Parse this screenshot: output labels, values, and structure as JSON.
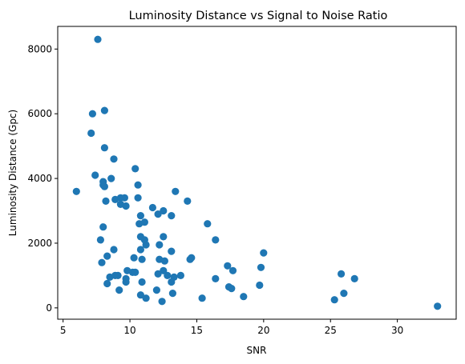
{
  "chart_data": {
    "type": "scatter",
    "title": "Luminosity Distance vs Signal to Noise Ratio",
    "xlabel": "SNR",
    "ylabel": "Luminosity Distance (Gpc)",
    "xlim": [
      4.6,
      34.4
    ],
    "ylim": [
      -350,
      8700
    ],
    "xticks": [
      5,
      10,
      15,
      20,
      25,
      30
    ],
    "yticks": [
      0,
      2000,
      4000,
      6000,
      8000
    ],
    "grid": false,
    "color": "#1f77b4",
    "points": [
      [
        7.6,
        8300
      ],
      [
        7.2,
        6000
      ],
      [
        8.1,
        6100
      ],
      [
        7.1,
        5400
      ],
      [
        8.1,
        4950
      ],
      [
        8.8,
        4600
      ],
      [
        7.4,
        4100
      ],
      [
        10.4,
        4300
      ],
      [
        8.6,
        4000
      ],
      [
        8.0,
        3900
      ],
      [
        8.0,
        3800
      ],
      [
        8.1,
        3750
      ],
      [
        6.0,
        3600
      ],
      [
        10.6,
        3800
      ],
      [
        13.4,
        3600
      ],
      [
        8.9,
        3350
      ],
      [
        9.3,
        3400
      ],
      [
        9.6,
        3400
      ],
      [
        10.6,
        3400
      ],
      [
        9.3,
        3200
      ],
      [
        9.7,
        3150
      ],
      [
        8.2,
        3300
      ],
      [
        11.7,
        3100
      ],
      [
        12.1,
        2900
      ],
      [
        12.5,
        3000
      ],
      [
        13.1,
        2850
      ],
      [
        10.8,
        2850
      ],
      [
        14.3,
        3300
      ],
      [
        10.7,
        2600
      ],
      [
        11.1,
        2650
      ],
      [
        15.8,
        2600
      ],
      [
        8.0,
        2500
      ],
      [
        7.8,
        2100
      ],
      [
        10.8,
        2200
      ],
      [
        11.1,
        2100
      ],
      [
        12.5,
        2200
      ],
      [
        16.4,
        2100
      ],
      [
        11.2,
        1950
      ],
      [
        12.2,
        1950
      ],
      [
        8.8,
        1800
      ],
      [
        10.8,
        1800
      ],
      [
        13.1,
        1750
      ],
      [
        20.0,
        1700
      ],
      [
        8.3,
        1600
      ],
      [
        10.3,
        1550
      ],
      [
        10.9,
        1500
      ],
      [
        12.2,
        1500
      ],
      [
        12.6,
        1450
      ],
      [
        14.5,
        1500
      ],
      [
        14.6,
        1550
      ],
      [
        7.9,
        1400
      ],
      [
        17.3,
        1300
      ],
      [
        19.8,
        1250
      ],
      [
        17.7,
        1150
      ],
      [
        9.8,
        1150
      ],
      [
        10.2,
        1100
      ],
      [
        10.4,
        1100
      ],
      [
        12.1,
        1050
      ],
      [
        12.5,
        1150
      ],
      [
        12.8,
        1000
      ],
      [
        13.3,
        950
      ],
      [
        13.8,
        1000
      ],
      [
        25.8,
        1050
      ],
      [
        26.8,
        900
      ],
      [
        8.5,
        950
      ],
      [
        8.9,
        1000
      ],
      [
        9.1,
        1000
      ],
      [
        9.7,
        900
      ],
      [
        9.7,
        800
      ],
      [
        8.3,
        750
      ],
      [
        10.9,
        800
      ],
      [
        13.1,
        800
      ],
      [
        16.4,
        900
      ],
      [
        17.4,
        650
      ],
      [
        17.6,
        600
      ],
      [
        19.7,
        700
      ],
      [
        9.2,
        550
      ],
      [
        12.0,
        550
      ],
      [
        13.2,
        450
      ],
      [
        10.8,
        400
      ],
      [
        11.2,
        300
      ],
      [
        12.4,
        200
      ],
      [
        15.4,
        300
      ],
      [
        18.5,
        350
      ],
      [
        25.3,
        250
      ],
      [
        26.0,
        450
      ],
      [
        33.0,
        50
      ]
    ]
  }
}
